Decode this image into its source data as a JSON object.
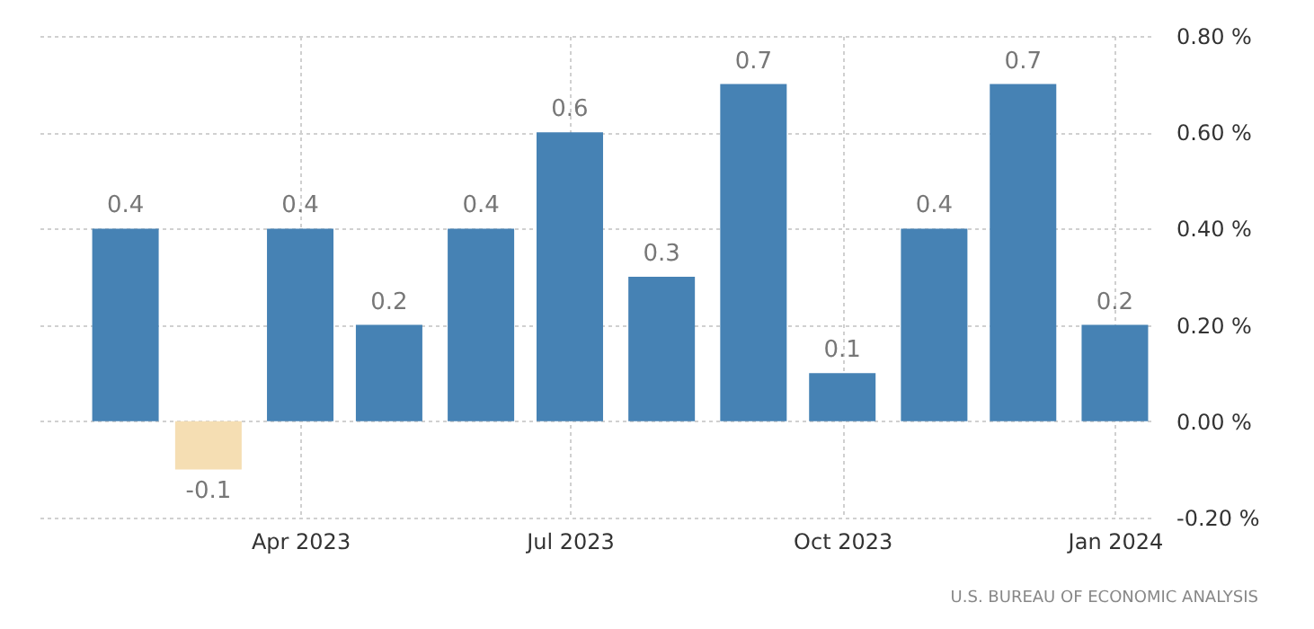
{
  "chart_data": {
    "type": "bar",
    "x": [
      "2023-02",
      "2023-03",
      "2023-04",
      "2023-05",
      "2023-06",
      "2023-07",
      "2023-08",
      "2023-09",
      "2023-10",
      "2023-11",
      "2023-12",
      "2024-01"
    ],
    "values": [
      0.4,
      -0.1,
      0.4,
      0.2,
      0.4,
      0.6,
      0.3,
      0.7,
      0.1,
      0.4,
      0.7,
      0.2
    ],
    "colors": [
      "#4682b4",
      "#f5deb3",
      "#4682b4",
      "#4682b4",
      "#4682b4",
      "#4682b4",
      "#4682b4",
      "#4682b4",
      "#4682b4",
      "#4682b4",
      "#4682b4",
      "#4682b4"
    ],
    "data_labels": true,
    "xlim": [
      "2023-01-03",
      "2024-01-13"
    ],
    "xticks": [
      {
        "value": "2023-04",
        "label": "Apr 2023"
      },
      {
        "value": "2023-07",
        "label": "Jul 2023"
      },
      {
        "value": "2023-10",
        "label": "Oct 2023"
      },
      {
        "value": "2024-01",
        "label": "Jan 2024"
      }
    ],
    "ylim": [
      -0.2,
      0.8
    ],
    "yticks": [
      {
        "value": -0.2,
        "label": "-0.20 %"
      },
      {
        "value": 0,
        "label": "0.00 %"
      },
      {
        "value": 0.2,
        "label": "0.20 %"
      },
      {
        "value": 0.4,
        "label": "0.40 %"
      },
      {
        "value": 0.6,
        "label": "0.60 %"
      },
      {
        "value": 0.8,
        "label": "0.80 %"
      }
    ],
    "grid": true,
    "annotations": [
      "U.S. BUREAU OF ECONOMIC ANALYSIS"
    ]
  }
}
